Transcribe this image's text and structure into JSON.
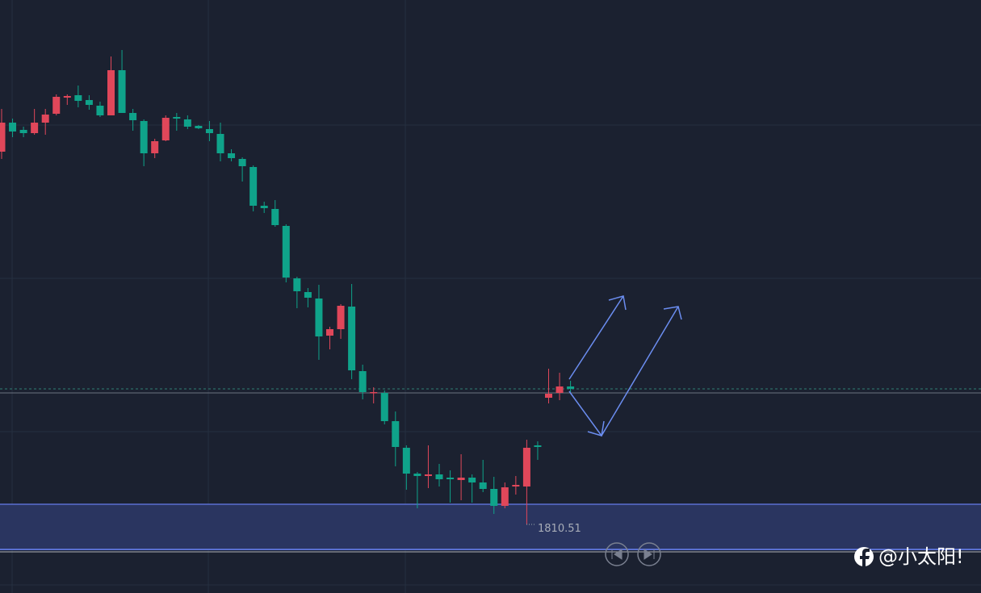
{
  "chart_data": {
    "type": "candlestick",
    "ylim": [
      1793.5,
      1940.5
    ],
    "up_color": "#e0475a",
    "down_color": "#0fa38a",
    "open": [
      1902.9,
      1910.1,
      1908.3,
      1907.5,
      1910.1,
      1912.3,
      1916.3,
      1916.9,
      1915.7,
      1914.3,
      1911.9,
      1923.1,
      1912.5,
      1910.5,
      1902.5,
      1905.7,
      1911.5,
      1910.9,
      1909.3,
      1908.5,
      1907.3,
      1902.5,
      1901.1,
      1899.1,
      1889.5,
      1888.7,
      1884.5,
      1871.5,
      1868.1,
      1866.5,
      1857.3,
      1858.9,
      1864.5,
      1848.5,
      1843.1,
      1843.1,
      1836.1,
      1829.5,
      1823.1,
      1822.5,
      1822.9,
      1822.1,
      1821.5,
      1822.1,
      1820.9,
      1819.3,
      1815.1,
      1819.9,
      1819.9,
      1830.1,
      1841.9,
      1843.1,
      1844.7
    ],
    "high": [
      1913.5,
      1911.1,
      1909.1,
      1913.5,
      1913.5,
      1917.1,
      1917.1,
      1919.3,
      1916.9,
      1915.3,
      1926.5,
      1928.1,
      1913.5,
      1910.9,
      1906.1,
      1911.9,
      1912.5,
      1911.9,
      1909.5,
      1910.5,
      1910.1,
      1903.5,
      1901.5,
      1899.5,
      1890.5,
      1890.9,
      1884.9,
      1871.9,
      1869.1,
      1869.9,
      1859.5,
      1865.1,
      1870.1,
      1850.1,
      1844.5,
      1843.7,
      1838.5,
      1830.1,
      1823.5,
      1830.1,
      1825.5,
      1823.9,
      1827.9,
      1822.9,
      1826.5,
      1822.3,
      1820.9,
      1822.5,
      1831.5,
      1831.1,
      1849.1,
      1848.1,
      1846.1
    ],
    "low": [
      1901.1,
      1906.5,
      1906.5,
      1907.1,
      1907.1,
      1911.9,
      1914.5,
      1913.9,
      1913.3,
      1911.5,
      1911.9,
      1912.5,
      1908.1,
      1899.3,
      1901.3,
      1905.5,
      1908.1,
      1908.5,
      1908.5,
      1905.5,
      1900.5,
      1900.5,
      1895.5,
      1888.1,
      1887.7,
      1884.3,
      1870.5,
      1864.1,
      1864.3,
      1851.3,
      1853.9,
      1856.5,
      1846.5,
      1841.5,
      1840.5,
      1835.3,
      1824.9,
      1819.1,
      1814.5,
      1819.5,
      1819.9,
      1815.9,
      1816.5,
      1815.9,
      1818.5,
      1813.1,
      1814.5,
      1817.9,
      1810.51,
      1826.5,
      1840.5,
      1841.3,
      1843.3
    ],
    "close": [
      1910.1,
      1907.9,
      1907.5,
      1910.1,
      1912.1,
      1916.5,
      1916.7,
      1915.5,
      1914.5,
      1911.9,
      1923.1,
      1912.5,
      1910.7,
      1902.5,
      1905.5,
      1911.3,
      1911.1,
      1909.1,
      1908.7,
      1907.5,
      1902.5,
      1901.3,
      1899.3,
      1889.5,
      1888.9,
      1884.7,
      1871.7,
      1868.3,
      1866.7,
      1857.1,
      1858.9,
      1864.7,
      1848.7,
      1843.3,
      1843.3,
      1836.1,
      1829.7,
      1823.1,
      1822.5,
      1822.9,
      1821.7,
      1821.7,
      1822.1,
      1820.9,
      1819.3,
      1815.1,
      1819.7,
      1820.3,
      1829.5,
      1829.7,
      1842.9,
      1844.7,
      1844.1
    ]
  },
  "watermark": "@小太阳!"
}
